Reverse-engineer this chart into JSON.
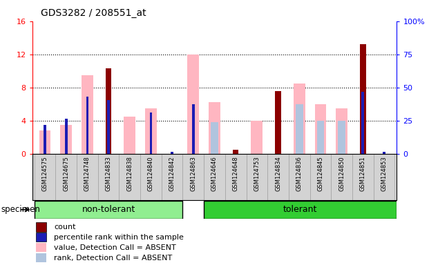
{
  "title": "GDS3282 / 208551_at",
  "samples": [
    "GSM124575",
    "GSM124675",
    "GSM124748",
    "GSM124833",
    "GSM124838",
    "GSM124840",
    "GSM124842",
    "GSM124863",
    "GSM124646",
    "GSM124648",
    "GSM124753",
    "GSM124834",
    "GSM124836",
    "GSM124845",
    "GSM124850",
    "GSM124851",
    "GSM124853"
  ],
  "groups": {
    "non-tolerant": [
      0,
      7
    ],
    "tolerant": [
      8,
      16
    ]
  },
  "count_values": [
    null,
    null,
    null,
    10.3,
    null,
    null,
    null,
    null,
    null,
    0.5,
    null,
    7.6,
    null,
    null,
    null,
    13.2,
    null
  ],
  "rank_values": [
    3.5,
    4.2,
    6.9,
    6.5,
    null,
    5.0,
    0.2,
    6.0,
    null,
    null,
    null,
    null,
    null,
    null,
    null,
    7.5,
    0.2
  ],
  "value_absent": [
    2.8,
    3.5,
    9.5,
    null,
    4.5,
    5.5,
    null,
    12.0,
    6.2,
    null,
    4.0,
    null,
    8.5,
    6.0,
    5.5,
    null,
    null
  ],
  "rank_absent": [
    null,
    null,
    null,
    null,
    null,
    null,
    null,
    null,
    3.8,
    null,
    null,
    null,
    6.0,
    4.0,
    4.0,
    null,
    null
  ],
  "ylim_left": [
    0,
    16
  ],
  "ylim_right": [
    0,
    100
  ],
  "left_ticks": [
    0,
    4,
    8,
    12,
    16
  ],
  "right_ticks": [
    0,
    25,
    50,
    75,
    100
  ],
  "right_tick_labels": [
    "0",
    "25",
    "50",
    "75",
    "100%"
  ],
  "color_count": "#8B0000",
  "color_rank": "#1C1CB4",
  "color_value_absent": "#FFB6C1",
  "color_rank_absent": "#B0C4DE",
  "group_color_nt": "#90EE90",
  "group_color_t": "#32CD32",
  "bg_color": "#D3D3D3",
  "plot_bg": "#FFFFFF",
  "legend_items": [
    {
      "label": "count",
      "color": "#8B0000"
    },
    {
      "label": "percentile rank within the sample",
      "color": "#1C1CB4"
    },
    {
      "label": "value, Detection Call = ABSENT",
      "color": "#FFB6C1"
    },
    {
      "label": "rank, Detection Call = ABSENT",
      "color": "#B0C4DE"
    }
  ]
}
